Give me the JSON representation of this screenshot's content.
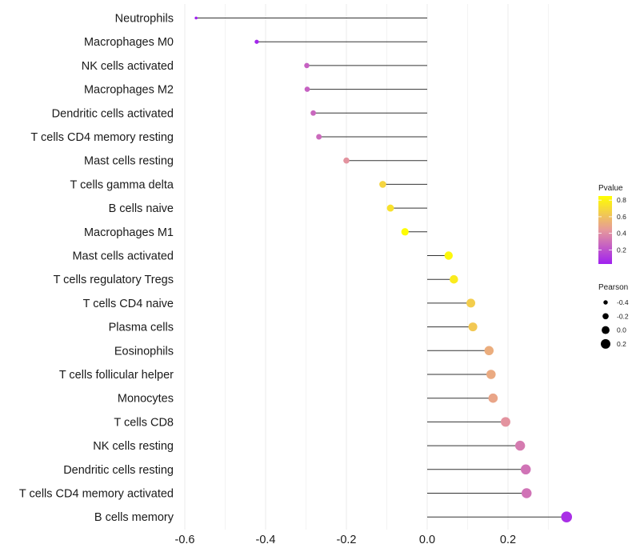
{
  "chart_data": {
    "type": "lollipop",
    "title": "",
    "xlabel": "",
    "ylabel": "",
    "xlim": [
      -0.6,
      0.35
    ],
    "x_ticks": [
      -0.6,
      -0.4,
      -0.2,
      0.0,
      0.2
    ],
    "x_tick_labels": [
      "-0.6",
      "-0.4",
      "-0.2",
      "0.0",
      "0.2"
    ],
    "grid": "vertical major and minor",
    "categories": [
      "Neutrophils",
      "Macrophages M0",
      "NK cells activated",
      "Macrophages M2",
      "Dendritic cells activated",
      "T cells CD4 memory resting",
      "Mast cells resting",
      "T cells gamma delta",
      "B cells naive",
      "Macrophages M1",
      "Mast cells activated",
      "T cells regulatory  Tregs ",
      "T cells CD4 naive",
      "Plasma cells",
      "Eosinophils",
      "T cells follicular helper",
      "Monocytes",
      "T cells CD8",
      "NK cells resting",
      "Dendritic cells resting",
      "T cells CD4 memory activated",
      "B cells memory"
    ],
    "pearson": [
      -0.572,
      -0.422,
      -0.298,
      -0.297,
      -0.282,
      -0.268,
      -0.2,
      -0.11,
      -0.091,
      -0.055,
      0.053,
      0.066,
      0.108,
      0.113,
      0.153,
      0.158,
      0.163,
      0.194,
      0.23,
      0.244,
      0.246,
      0.345
    ],
    "pvalue": [
      0.01,
      0.05,
      0.25,
      0.25,
      0.27,
      0.28,
      0.42,
      0.68,
      0.73,
      0.84,
      0.82,
      0.77,
      0.65,
      0.63,
      0.52,
      0.51,
      0.49,
      0.42,
      0.34,
      0.31,
      0.31,
      0.08
    ],
    "legend": {
      "placement": "right",
      "color": {
        "title": "Pvalue",
        "ticks": [
          0.8,
          0.6,
          0.4,
          0.2
        ],
        "tick_labels": [
          "0.8",
          "0.6",
          "0.4",
          "0.2"
        ],
        "range": [
          0.03,
          0.85
        ],
        "low_color": "#a020f0",
        "mid_color": "#e6999b",
        "high_color": "#ffff00"
      },
      "size": {
        "title": "Pearson",
        "values": [
          -0.4,
          -0.2,
          0.0,
          0.2
        ],
        "labels": [
          "-0.4",
          "-0.2",
          "0.0",
          "0.2"
        ]
      }
    }
  }
}
